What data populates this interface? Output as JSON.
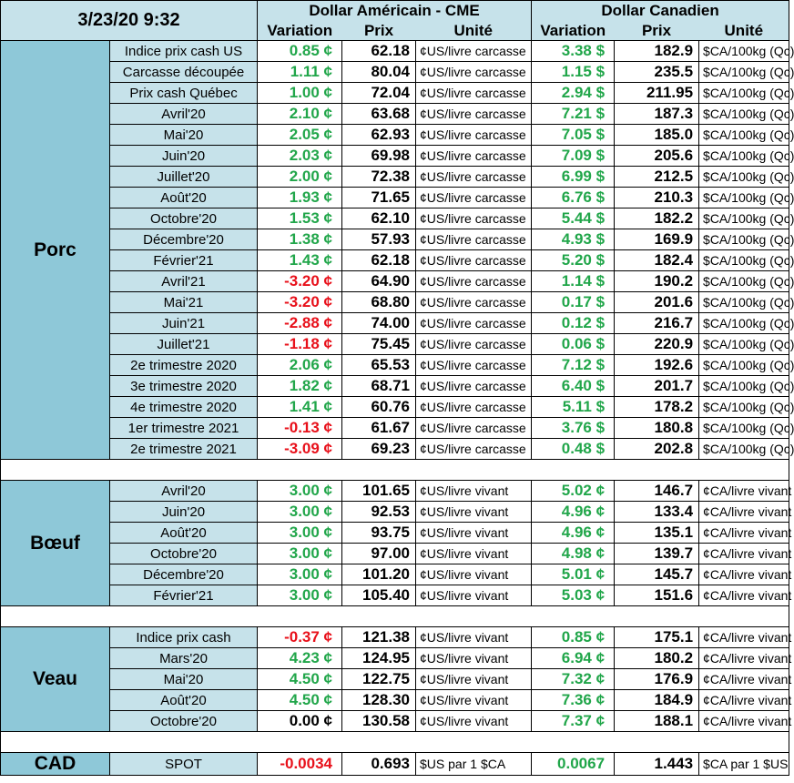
{
  "header": {
    "date": "3/23/20 9:32",
    "usd_title": "Dollar Américain - CME",
    "cad_title": "Dollar Canadien",
    "col_variation": "Variation",
    "col_prix": "Prix",
    "col_unite": "Unité"
  },
  "sections": [
    {
      "name": "Porc",
      "rows": [
        {
          "label": "Indice prix cash US",
          "usd_var": "0.85 ¢",
          "usd_prix": "62.18",
          "usd_unit": "¢US/livre carcasse",
          "cad_var": "3.38 $",
          "cad_prix": "182.9",
          "cad_unit": "$CA/100kg (Qc)"
        },
        {
          "label": "Carcasse découpée",
          "usd_var": "1.11 ¢",
          "usd_prix": "80.04",
          "usd_unit": "¢US/livre carcasse",
          "cad_var": "1.15 $",
          "cad_prix": "235.5",
          "cad_unit": "$CA/100kg (Qc)"
        },
        {
          "label": "Prix cash Québec",
          "usd_var": "1.00 ¢",
          "usd_prix": "72.04",
          "usd_unit": "¢US/livre carcasse",
          "cad_var": "2.94 $",
          "cad_prix": "211.95",
          "cad_unit": "$CA/100kg (Qc)"
        },
        {
          "label": "Avril'20",
          "usd_var": "2.10 ¢",
          "usd_prix": "63.68",
          "usd_unit": "¢US/livre carcasse",
          "cad_var": "7.21 $",
          "cad_prix": "187.3",
          "cad_unit": "$CA/100kg (Qc)"
        },
        {
          "label": "Mai'20",
          "usd_var": "2.05 ¢",
          "usd_prix": "62.93",
          "usd_unit": "¢US/livre carcasse",
          "cad_var": "7.05 $",
          "cad_prix": "185.0",
          "cad_unit": "$CA/100kg (Qc)"
        },
        {
          "label": "Juin'20",
          "usd_var": "2.03 ¢",
          "usd_prix": "69.98",
          "usd_unit": "¢US/livre carcasse",
          "cad_var": "7.09 $",
          "cad_prix": "205.6",
          "cad_unit": "$CA/100kg (Qc)"
        },
        {
          "label": "Juillet'20",
          "usd_var": "2.00 ¢",
          "usd_prix": "72.38",
          "usd_unit": "¢US/livre carcasse",
          "cad_var": "6.99 $",
          "cad_prix": "212.5",
          "cad_unit": "$CA/100kg (Qc)"
        },
        {
          "label": "Août'20",
          "usd_var": "1.93 ¢",
          "usd_prix": "71.65",
          "usd_unit": "¢US/livre carcasse",
          "cad_var": "6.76 $",
          "cad_prix": "210.3",
          "cad_unit": "$CA/100kg (Qc)"
        },
        {
          "label": "Octobre'20",
          "usd_var": "1.53 ¢",
          "usd_prix": "62.10",
          "usd_unit": "¢US/livre carcasse",
          "cad_var": "5.44 $",
          "cad_prix": "182.2",
          "cad_unit": "$CA/100kg (Qc)"
        },
        {
          "label": "Décembre'20",
          "usd_var": "1.38 ¢",
          "usd_prix": "57.93",
          "usd_unit": "¢US/livre carcasse",
          "cad_var": "4.93 $",
          "cad_prix": "169.9",
          "cad_unit": "$CA/100kg (Qc)"
        },
        {
          "label": "Février'21",
          "usd_var": "1.43 ¢",
          "usd_prix": "62.18",
          "usd_unit": "¢US/livre carcasse",
          "cad_var": "5.20 $",
          "cad_prix": "182.4",
          "cad_unit": "$CA/100kg (Qc)"
        },
        {
          "label": "Avril'21",
          "usd_var": "-3.20 ¢",
          "usd_prix": "64.90",
          "usd_unit": "¢US/livre carcasse",
          "cad_var": "1.14 $",
          "cad_prix": "190.2",
          "cad_unit": "$CA/100kg (Qc)"
        },
        {
          "label": "Mai'21",
          "usd_var": "-3.20 ¢",
          "usd_prix": "68.80",
          "usd_unit": "¢US/livre carcasse",
          "cad_var": "0.17 $",
          "cad_prix": "201.6",
          "cad_unit": "$CA/100kg (Qc)"
        },
        {
          "label": "Juin'21",
          "usd_var": "-2.88 ¢",
          "usd_prix": "74.00",
          "usd_unit": "¢US/livre carcasse",
          "cad_var": "0.12 $",
          "cad_prix": "216.7",
          "cad_unit": "$CA/100kg (Qc)"
        },
        {
          "label": "Juillet'21",
          "usd_var": "-1.18 ¢",
          "usd_prix": "75.45",
          "usd_unit": "¢US/livre carcasse",
          "cad_var": "0.06 $",
          "cad_prix": "220.9",
          "cad_unit": "$CA/100kg (Qc)"
        },
        {
          "label": "2e trimestre 2020",
          "usd_var": "2.06 ¢",
          "usd_prix": "65.53",
          "usd_unit": "¢US/livre carcasse",
          "cad_var": "7.12 $",
          "cad_prix": "192.6",
          "cad_unit": "$CA/100kg (Qc)"
        },
        {
          "label": "3e trimestre 2020",
          "usd_var": "1.82 ¢",
          "usd_prix": "68.71",
          "usd_unit": "¢US/livre carcasse",
          "cad_var": "6.40 $",
          "cad_prix": "201.7",
          "cad_unit": "$CA/100kg (Qc)"
        },
        {
          "label": "4e trimestre 2020",
          "usd_var": "1.41 ¢",
          "usd_prix": "60.76",
          "usd_unit": "¢US/livre carcasse",
          "cad_var": "5.11 $",
          "cad_prix": "178.2",
          "cad_unit": "$CA/100kg (Qc)"
        },
        {
          "label": "1er trimestre 2021",
          "usd_var": "-0.13 ¢",
          "usd_prix": "61.67",
          "usd_unit": "¢US/livre carcasse",
          "cad_var": "3.76 $",
          "cad_prix": "180.8",
          "cad_unit": "$CA/100kg (Qc)"
        },
        {
          "label": "2e trimestre 2021",
          "usd_var": "-3.09 ¢",
          "usd_prix": "69.23",
          "usd_unit": "¢US/livre carcasse",
          "cad_var": "0.48 $",
          "cad_prix": "202.8",
          "cad_unit": "$CA/100kg (Qc)"
        }
      ]
    },
    {
      "name": "Bœuf",
      "rows": [
        {
          "label": "Avril'20",
          "usd_var": "3.00 ¢",
          "usd_prix": "101.65",
          "usd_unit": "¢US/livre vivant",
          "cad_var": "5.02 ¢",
          "cad_prix": "146.7",
          "cad_unit": "¢CA/livre vivant"
        },
        {
          "label": "Juin'20",
          "usd_var": "3.00 ¢",
          "usd_prix": "92.53",
          "usd_unit": "¢US/livre vivant",
          "cad_var": "4.96 ¢",
          "cad_prix": "133.4",
          "cad_unit": "¢CA/livre vivant"
        },
        {
          "label": "Août'20",
          "usd_var": "3.00 ¢",
          "usd_prix": "93.75",
          "usd_unit": "¢US/livre vivant",
          "cad_var": "4.96 ¢",
          "cad_prix": "135.1",
          "cad_unit": "¢CA/livre vivant"
        },
        {
          "label": "Octobre'20",
          "usd_var": "3.00 ¢",
          "usd_prix": "97.00",
          "usd_unit": "¢US/livre vivant",
          "cad_var": "4.98 ¢",
          "cad_prix": "139.7",
          "cad_unit": "¢CA/livre vivant"
        },
        {
          "label": "Décembre'20",
          "usd_var": "3.00 ¢",
          "usd_prix": "101.20",
          "usd_unit": "¢US/livre vivant",
          "cad_var": "5.01 ¢",
          "cad_prix": "145.7",
          "cad_unit": "¢CA/livre vivant"
        },
        {
          "label": "Février'21",
          "usd_var": "3.00 ¢",
          "usd_prix": "105.40",
          "usd_unit": "¢US/livre vivant",
          "cad_var": "5.03 ¢",
          "cad_prix": "151.6",
          "cad_unit": "¢CA/livre vivant"
        }
      ]
    },
    {
      "name": "Veau",
      "rows": [
        {
          "label": "Indice prix cash",
          "usd_var": "-0.37 ¢",
          "usd_prix": "121.38",
          "usd_unit": "¢US/livre vivant",
          "cad_var": "0.85 ¢",
          "cad_prix": "175.1",
          "cad_unit": "¢CA/livre vivant"
        },
        {
          "label": "Mars'20",
          "usd_var": "4.23 ¢",
          "usd_prix": "124.95",
          "usd_unit": "¢US/livre vivant",
          "cad_var": "6.94 ¢",
          "cad_prix": "180.2",
          "cad_unit": "¢CA/livre vivant"
        },
        {
          "label": "Mai'20",
          "usd_var": "4.50 ¢",
          "usd_prix": "122.75",
          "usd_unit": "¢US/livre vivant",
          "cad_var": "7.32 ¢",
          "cad_prix": "176.9",
          "cad_unit": "¢CA/livre vivant"
        },
        {
          "label": "Août'20",
          "usd_var": "4.50 ¢",
          "usd_prix": "128.30",
          "usd_unit": "¢US/livre vivant",
          "cad_var": "7.36 ¢",
          "cad_prix": "184.9",
          "cad_unit": "¢CA/livre vivant"
        },
        {
          "label": "Octobre'20",
          "usd_var": "0.00 ¢",
          "usd_prix": "130.58",
          "usd_unit": "¢US/livre vivant",
          "cad_var": "7.37 ¢",
          "cad_prix": "188.1",
          "cad_unit": "¢CA/livre vivant"
        }
      ]
    },
    {
      "name": "CAD",
      "rows": [
        {
          "label": "SPOT",
          "usd_var": "-0.0034",
          "usd_prix": "0.693",
          "usd_unit": "$US par 1 $CA",
          "cad_var": "0.0067",
          "cad_prix": "1.443",
          "cad_unit": "$CA par 1 $US"
        }
      ]
    }
  ],
  "colors": {
    "positive": "#21a64a",
    "negative": "#e8101a",
    "header_bg": "#c6e2ea",
    "section_bg": "#8ec8d8"
  }
}
